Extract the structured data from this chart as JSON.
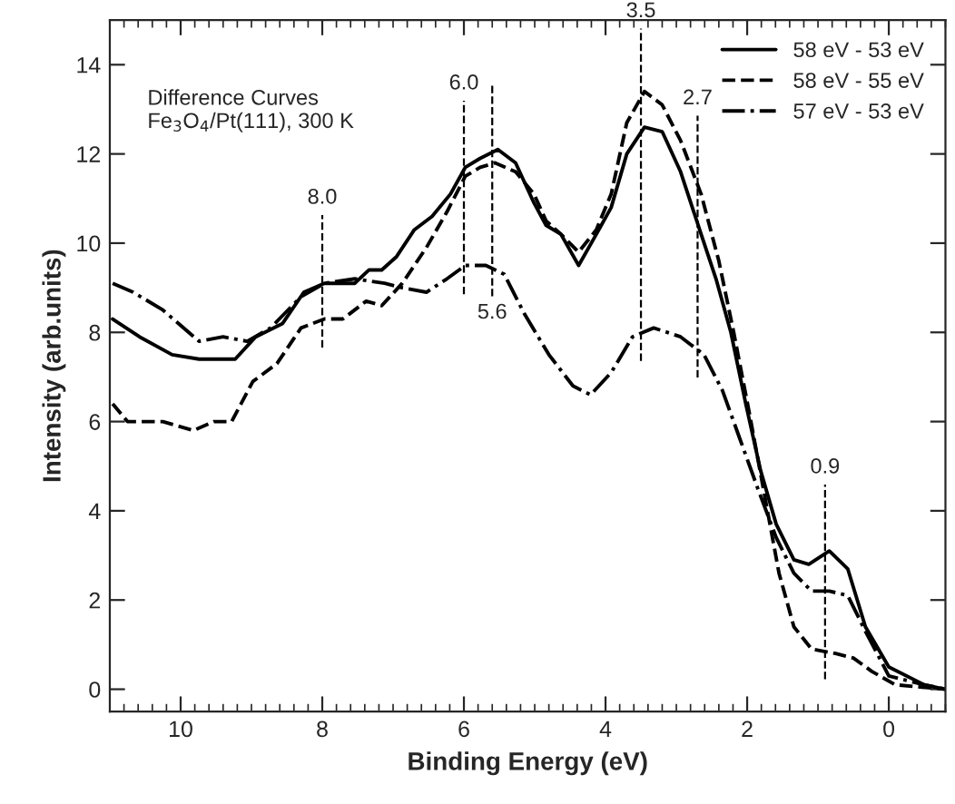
{
  "chart_data": {
    "type": "line",
    "xlabel": "Binding Energy (eV)",
    "ylabel": "Intensity (arb.units)",
    "annotations": [
      "Difference Curves\nFe$_{3}$O$_{4}$/Pt(111), 300 K"
    ],
    "xlim": [
      11,
      -0.8
    ],
    "ylim": [
      -0.5,
      15
    ],
    "xticks": [
      10,
      8,
      6,
      4,
      2,
      0
    ],
    "yticks": [
      0,
      2,
      4,
      6,
      8,
      10,
      12,
      14
    ],
    "grid": false,
    "legend": "top right",
    "marker": "none",
    "ref_lines": [
      {
        "axis": "x",
        "value": 8.0,
        "label": "8.0",
        "line_style": "dashed",
        "color": "#000000"
      },
      {
        "axis": "x",
        "value": 6.0,
        "label": "6.0",
        "line_style": "dashed",
        "color": "#000000"
      },
      {
        "axis": "x",
        "value": 5.6,
        "label": "5.6",
        "line_style": "dashed",
        "color": "#000000"
      },
      {
        "axis": "x",
        "value": 3.5,
        "label": "3.5",
        "line_style": "dashed",
        "color": "#000000"
      },
      {
        "axis": "x",
        "value": 2.7,
        "label": "2.7",
        "line_style": "dashed",
        "color": "#000000"
      },
      {
        "axis": "x",
        "value": 0.9,
        "label": "0.9",
        "line_style": "dashed",
        "color": "#000000"
      }
    ],
    "series": [
      {
        "name": "58 eV - 53 eV",
        "color": "#000000",
        "line_style": "solid",
        "x": [
          10.96,
          10.58,
          10.12,
          9.74,
          9.23,
          8.94,
          8.56,
          8.26,
          7.97,
          7.71,
          7.54,
          7.34,
          7.16,
          6.95,
          6.7,
          6.45,
          6.19,
          5.98,
          5.77,
          5.52,
          5.27,
          5.01,
          4.84,
          4.63,
          4.38,
          4.13,
          3.92,
          3.7,
          3.45,
          3.2,
          2.94,
          2.65,
          2.44,
          2.23,
          2.02,
          1.81,
          1.59,
          1.34,
          1.13,
          0.84,
          0.58,
          0.33,
          0.0,
          -0.5,
          -0.8
        ],
        "values": [
          8.3,
          7.9,
          7.5,
          7.4,
          7.4,
          7.9,
          8.2,
          8.9,
          9.1,
          9.1,
          9.1,
          9.4,
          9.4,
          9.7,
          10.3,
          10.6,
          11.1,
          11.7,
          11.9,
          12.1,
          11.8,
          10.9,
          10.4,
          10.2,
          9.5,
          10.2,
          10.8,
          12.0,
          12.6,
          12.5,
          11.6,
          10.2,
          9.2,
          8.0,
          6.4,
          4.9,
          3.7,
          2.9,
          2.8,
          3.1,
          2.7,
          1.4,
          0.5,
          0.1,
          0.0
        ]
      },
      {
        "name": "58 eV - 55 eV",
        "color": "#000000",
        "line_style": "dashed",
        "x": [
          10.96,
          10.75,
          10.25,
          9.82,
          9.53,
          9.28,
          8.98,
          8.64,
          8.3,
          7.97,
          7.71,
          7.38,
          7.16,
          6.87,
          6.53,
          6.24,
          5.98,
          5.77,
          5.56,
          5.27,
          5.01,
          4.84,
          4.63,
          4.38,
          4.13,
          3.92,
          3.7,
          3.45,
          3.2,
          2.94,
          2.65,
          2.4,
          2.19,
          1.97,
          1.76,
          1.55,
          1.34,
          1.09,
          0.75,
          0.5,
          0.24,
          -0.09,
          -0.8
        ],
        "values": [
          6.4,
          6.0,
          6.0,
          5.8,
          6.0,
          6.0,
          6.9,
          7.3,
          8.1,
          8.3,
          8.3,
          8.7,
          8.6,
          9.1,
          9.9,
          10.7,
          11.5,
          11.7,
          11.8,
          11.6,
          11.1,
          10.5,
          10.2,
          9.8,
          10.3,
          11.1,
          12.7,
          13.4,
          13.1,
          12.3,
          11.1,
          9.6,
          8.0,
          6.2,
          4.4,
          2.6,
          1.4,
          0.9,
          0.8,
          0.7,
          0.4,
          0.1,
          0.0
        ]
      },
      {
        "name": "57 eV - 53 eV",
        "color": "#000000",
        "line_style": "dashdot",
        "x": [
          10.96,
          10.67,
          10.25,
          9.74,
          9.4,
          9.06,
          8.73,
          8.3,
          7.97,
          7.54,
          7.12,
          6.87,
          6.53,
          6.24,
          5.98,
          5.69,
          5.43,
          5.14,
          4.8,
          4.46,
          4.21,
          3.92,
          3.62,
          3.32,
          2.94,
          2.61,
          2.35,
          2.1,
          1.85,
          1.59,
          1.34,
          1.09,
          0.84,
          0.58,
          0.33,
          0.0,
          -0.5,
          -0.8
        ],
        "values": [
          9.1,
          8.9,
          8.5,
          7.8,
          7.9,
          7.8,
          8.1,
          8.8,
          9.1,
          9.2,
          9.1,
          9.0,
          8.9,
          9.2,
          9.5,
          9.5,
          9.3,
          8.4,
          7.5,
          6.8,
          6.6,
          7.1,
          7.9,
          8.1,
          7.9,
          7.5,
          6.7,
          5.6,
          4.5,
          3.4,
          2.6,
          2.2,
          2.2,
          2.1,
          1.3,
          0.3,
          0.1,
          0.0
        ]
      }
    ]
  }
}
